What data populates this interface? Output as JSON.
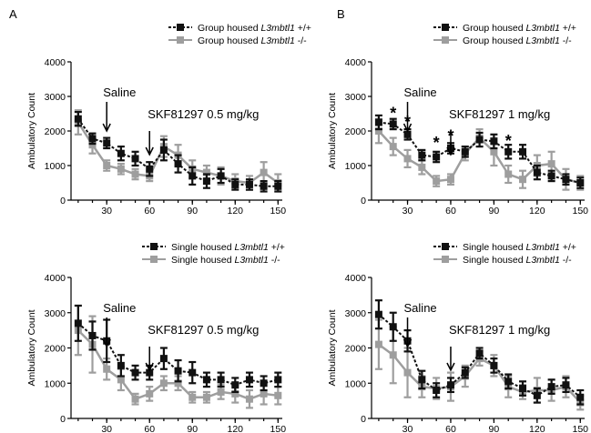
{
  "panel_letters": {
    "A": "A",
    "B": "B"
  },
  "colors": {
    "wt": "#111111",
    "ko": "#9e9e9e"
  },
  "chart_data": [
    {
      "id": "A-top",
      "type": "line",
      "ylabel": "Ambulatory Count",
      "ylim": [
        0,
        4000
      ],
      "yticks": [
        "0",
        "1000",
        "2000",
        "3000",
        "4000"
      ],
      "xlim": [
        5,
        153
      ],
      "xticks": [
        "30",
        "60",
        "90",
        "120",
        "150"
      ],
      "legend": {
        "placement": "top-right",
        "entries": [
          {
            "prefix": "Group housed ",
            "gene": "L3mbtl1",
            "suffix": " +/+",
            "color_key": "wt"
          },
          {
            "prefix": "Group housed ",
            "gene": "L3mbtl1",
            "suffix": " -/-",
            "color_key": "ko"
          }
        ]
      },
      "annotations": [
        {
          "text": "Saline",
          "x": 30
        },
        {
          "text": "SKF81297 0.5 mg/kg",
          "x": 60
        }
      ],
      "series": [
        {
          "name": "Group housed L3mbtl1 +/+",
          "color_key": "wt",
          "x": [
            10,
            20,
            30,
            40,
            50,
            60,
            70,
            80,
            90,
            100,
            110,
            120,
            130,
            140,
            150
          ],
          "y": [
            2350,
            1780,
            1650,
            1350,
            1200,
            900,
            1450,
            1050,
            700,
            550,
            700,
            450,
            450,
            400,
            400
          ],
          "err": [
            200,
            150,
            150,
            200,
            200,
            200,
            300,
            250,
            250,
            200,
            200,
            150,
            150,
            150,
            150
          ]
        },
        {
          "name": "Group housed L3mbtl1 -/-",
          "color_key": "ko",
          "x": [
            10,
            20,
            30,
            40,
            50,
            60,
            70,
            80,
            90,
            100,
            110,
            120,
            130,
            140,
            150
          ],
          "y": [
            2250,
            1600,
            1000,
            900,
            750,
            700,
            1550,
            1300,
            900,
            800,
            700,
            550,
            500,
            800,
            500
          ],
          "err": [
            350,
            250,
            150,
            150,
            150,
            150,
            300,
            300,
            250,
            200,
            250,
            200,
            200,
            300,
            250
          ]
        }
      ]
    },
    {
      "id": "B-top",
      "type": "line",
      "ylabel": "Ambulatory Count",
      "ylim": [
        0,
        4000
      ],
      "yticks": [
        "0",
        "1000",
        "2000",
        "3000",
        "4000"
      ],
      "xlim": [
        5,
        153
      ],
      "xticks": [
        "30",
        "60",
        "90",
        "120",
        "150"
      ],
      "legend": {
        "placement": "top-right",
        "entries": [
          {
            "prefix": "Group housed ",
            "gene": "L3mbtl1",
            "suffix": " +/+",
            "color_key": "wt"
          },
          {
            "prefix": "Group housed ",
            "gene": "L3mbtl1",
            "suffix": " -/-",
            "color_key": "ko"
          }
        ]
      },
      "annotations": [
        {
          "text": "Saline",
          "x": 30
        },
        {
          "text": "SKF81297 1 mg/kg",
          "x": 60
        }
      ],
      "significance": [
        {
          "text": "*",
          "x": 20,
          "y": 2350
        },
        {
          "text": "*",
          "x": 30,
          "y": 2100
        },
        {
          "text": "*",
          "x": 50,
          "y": 1500
        },
        {
          "text": "*",
          "x": 60,
          "y": 1700
        },
        {
          "text": "*",
          "x": 100,
          "y": 1550
        }
      ],
      "series": [
        {
          "name": "Group housed L3mbtl1 +/+",
          "color_key": "wt",
          "x": [
            10,
            20,
            30,
            40,
            50,
            60,
            70,
            80,
            90,
            100,
            110,
            120,
            130,
            140,
            150
          ],
          "y": [
            2250,
            2200,
            1900,
            1300,
            1250,
            1500,
            1400,
            1750,
            1700,
            1400,
            1400,
            800,
            700,
            600,
            500
          ],
          "err": [
            200,
            150,
            150,
            150,
            150,
            150,
            150,
            200,
            200,
            200,
            200,
            200,
            150,
            150,
            150
          ]
        },
        {
          "name": "Group housed L3mbtl1 -/-",
          "color_key": "ko",
          "x": [
            10,
            20,
            30,
            40,
            50,
            60,
            70,
            80,
            90,
            100,
            110,
            120,
            130,
            140,
            150
          ],
          "y": [
            2000,
            1550,
            1200,
            950,
            550,
            600,
            1350,
            1800,
            1400,
            750,
            600,
            1000,
            1050,
            600,
            500
          ],
          "err": [
            350,
            250,
            250,
            200,
            150,
            150,
            200,
            250,
            400,
            250,
            250,
            300,
            350,
            300,
            200
          ]
        }
      ]
    },
    {
      "id": "A-bottom",
      "type": "line",
      "ylabel": "Ambulatory Count",
      "ylim": [
        0,
        4000
      ],
      "yticks": [
        "0",
        "1000",
        "2000",
        "3000",
        "4000"
      ],
      "xlim": [
        5,
        153
      ],
      "xticks": [
        "30",
        "60",
        "90",
        "120",
        "150"
      ],
      "legend": {
        "placement": "top-right",
        "entries": [
          {
            "prefix": "Single housed ",
            "gene": "L3mbtl1",
            "suffix": " +/+",
            "color_key": "wt"
          },
          {
            "prefix": "Single housed ",
            "gene": "L3mbtl1",
            "suffix": " -/-",
            "color_key": "ko"
          }
        ]
      },
      "annotations": [
        {
          "text": "Saline",
          "x": 30
        },
        {
          "text": "SKF81297 0.5 mg/kg",
          "x": 60
        }
      ],
      "series": [
        {
          "name": "Single housed L3mbtl1 +/+",
          "color_key": "wt",
          "x": [
            10,
            20,
            30,
            40,
            50,
            60,
            70,
            80,
            90,
            100,
            110,
            120,
            130,
            140,
            150
          ],
          "y": [
            2700,
            2350,
            2200,
            1500,
            1300,
            1300,
            1700,
            1350,
            1300,
            1100,
            1100,
            950,
            1100,
            1000,
            1100
          ],
          "err": [
            500,
            400,
            600,
            300,
            200,
            200,
            300,
            300,
            300,
            200,
            200,
            200,
            200,
            200,
            200
          ]
        },
        {
          "name": "Single housed L3mbtl1 -/-",
          "color_key": "ko",
          "x": [
            10,
            20,
            30,
            40,
            50,
            60,
            70,
            80,
            90,
            100,
            110,
            120,
            130,
            140,
            150
          ],
          "y": [
            2500,
            2100,
            1400,
            1100,
            550,
            700,
            1000,
            1000,
            600,
            600,
            750,
            700,
            550,
            700,
            650
          ],
          "err": [
            700,
            800,
            300,
            300,
            150,
            200,
            200,
            200,
            150,
            150,
            200,
            250,
            250,
            300,
            250
          ]
        }
      ]
    },
    {
      "id": "B-bottom",
      "type": "line",
      "ylabel": "Ambulatory Count",
      "ylim": [
        0,
        4000
      ],
      "yticks": [
        "0",
        "1000",
        "2000",
        "3000",
        "4000"
      ],
      "xlim": [
        5,
        153
      ],
      "xticks": [
        "30",
        "60",
        "90",
        "120",
        "150"
      ],
      "legend": {
        "placement": "top-right",
        "entries": [
          {
            "prefix": "Single housed ",
            "gene": "L3mbtl1",
            "suffix": " +/+",
            "color_key": "wt"
          },
          {
            "prefix": "Single housed ",
            "gene": "L3mbtl1",
            "suffix": " -/-",
            "color_key": "ko"
          }
        ]
      },
      "annotations": [
        {
          "text": "Saline",
          "x": 30
        },
        {
          "text": "SKF81297 1 mg/kg",
          "x": 60
        }
      ],
      "series": [
        {
          "name": "Single housed L3mbtl1 +/+",
          "color_key": "wt",
          "x": [
            10,
            20,
            30,
            40,
            50,
            60,
            70,
            80,
            90,
            100,
            110,
            120,
            130,
            140,
            150
          ],
          "y": [
            2950,
            2600,
            2200,
            1100,
            800,
            950,
            1300,
            1850,
            1500,
            1050,
            850,
            650,
            900,
            950,
            600
          ],
          "err": [
            400,
            400,
            300,
            250,
            200,
            200,
            150,
            150,
            200,
            200,
            200,
            200,
            200,
            200,
            200
          ]
        },
        {
          "name": "Single housed L3mbtl1 -/-",
          "color_key": "ko",
          "x": [
            10,
            20,
            30,
            40,
            50,
            60,
            70,
            80,
            90,
            100,
            110,
            120,
            130,
            140,
            150
          ],
          "y": [
            2100,
            1800,
            1300,
            900,
            850,
            900,
            1200,
            1700,
            1500,
            900,
            750,
            800,
            800,
            900,
            450
          ],
          "err": [
            700,
            800,
            700,
            300,
            300,
            400,
            300,
            200,
            300,
            300,
            200,
            350,
            300,
            300,
            200
          ]
        }
      ]
    }
  ]
}
